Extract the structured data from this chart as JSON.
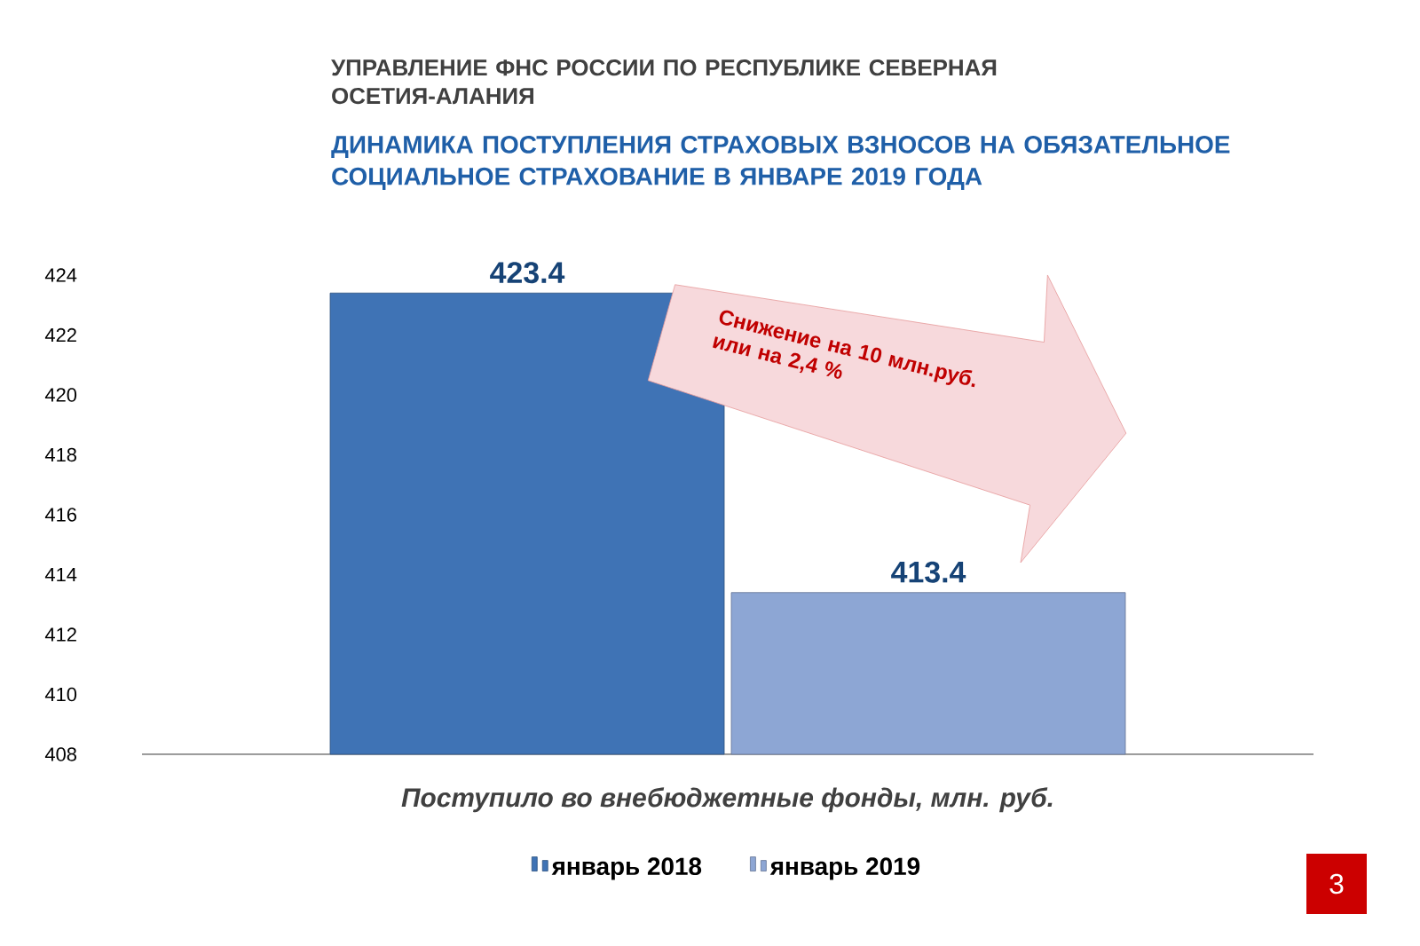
{
  "chart_data": {
    "type": "bar",
    "subtitle": "УПРАВЛЕНИЕ ФНС РОССИИ ПО РЕСПУБЛИКЕ СЕВЕРНАЯ ОСЕТИЯ-АЛАНИЯ",
    "title": "ДИНАМИКА ПОСТУПЛЕНИЯ СТРАХОВЫХ ВЗНОСОВ НА ОБЯЗАТЕЛЬНОЕ СОЦИАЛЬНОЕ СТРАХОВАНИЕ   В ЯНВАРЕ 2019 ГОДА",
    "xlabel": "Поступило во внебюджетные фонды, млн. руб.",
    "categories": [
      null
    ],
    "series": [
      {
        "name": "январь 2018",
        "color": "#3f73b5",
        "values": [
          423.4
        ]
      },
      {
        "name": "январь 2019",
        "color": "#8da6d4",
        "values": [
          413.4
        ]
      }
    ],
    "ylim": [
      408,
      424
    ],
    "yticks": [
      408,
      410,
      412,
      414,
      416,
      418,
      420,
      422,
      424
    ],
    "data_labels": true,
    "legend": "bottom",
    "grid": false,
    "annotations": [
      "Снижение на 10 млн.руб. или на 2,4 %",
      "3"
    ]
  }
}
